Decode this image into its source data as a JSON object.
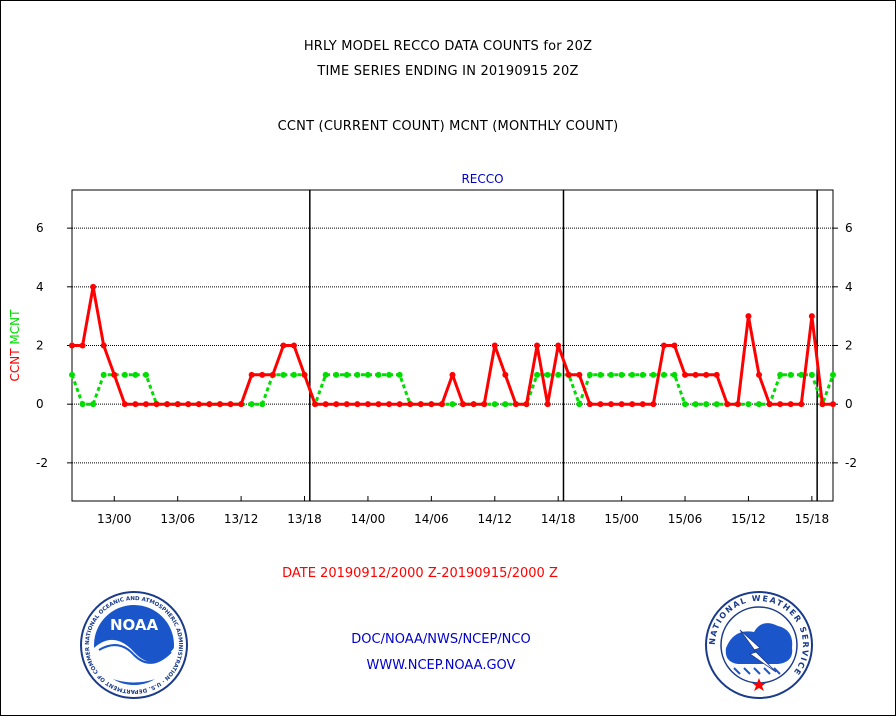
{
  "header": {
    "line1": "HRLY MODEL RECCO DATA COUNTS for 20Z",
    "line2": "TIME SERIES ENDING IN 20190915 20Z",
    "line3": "CCNT (CURRENT COUNT) MCNT (MONTHLY COUNT)"
  },
  "footer": {
    "date_range": "DATE 20190912/2000 Z-20190915/2000 Z",
    "org": "DOC/NOAA/NWS/NCEP/NCO",
    "url": "WWW.NCEP.NOAA.GOV"
  },
  "logos": {
    "left": {
      "text": "NOAA",
      "ring_text": "NATIONAL OCEANIC AND ATMOSPHERIC ADMINISTRATION · U.S. DEPARTMENT OF COMMERCE"
    },
    "right": {
      "ring_text": "NATIONAL WEATHER SERVICE"
    }
  },
  "colors": {
    "ccnt": "#ff0000",
    "mcnt": "#00dd00",
    "panel_title": "#0000cc"
  },
  "chart_data": {
    "type": "line",
    "title": "RECCO",
    "ylabel_parts": [
      "CCNT",
      "MCNT"
    ],
    "ylim": [
      -3.3,
      7.3
    ],
    "yticks": [
      -2,
      0,
      2,
      4,
      6
    ],
    "ytick_labels": [
      "-2",
      "0",
      "2",
      "4",
      "6"
    ],
    "grid": true,
    "hour_range": [
      -4,
      68
    ],
    "x_ticks": [
      0,
      6,
      12,
      18,
      24,
      30,
      36,
      42,
      48,
      54,
      60,
      66
    ],
    "x_tick_labels": [
      "13/00",
      "13/06",
      "13/12",
      "13/18",
      "14/00",
      "14/06",
      "14/12",
      "14/18",
      "15/00",
      "15/06",
      "15/12",
      "15/18"
    ],
    "day_separators": [
      18.5,
      42.5,
      66.5
    ],
    "x_start_hour": -4,
    "series": [
      {
        "name": "CCNT",
        "values": [
          2,
          2,
          4,
          2,
          1,
          0,
          0,
          0,
          0,
          0,
          0,
          0,
          0,
          0,
          0,
          0,
          0,
          1,
          1,
          1,
          2,
          2,
          1,
          0,
          0,
          0,
          0,
          0,
          0,
          0,
          0,
          0,
          0,
          0,
          0,
          0,
          1,
          0,
          0,
          0,
          2,
          1,
          0,
          0,
          2,
          0,
          2,
          1,
          1,
          0,
          0,
          0,
          0,
          0,
          0,
          0,
          2,
          2,
          1,
          1,
          1,
          1,
          0,
          0,
          3,
          1,
          0,
          0,
          0,
          0,
          3,
          0,
          0
        ]
      },
      {
        "name": "MCNT",
        "values": [
          1,
          0,
          0,
          1,
          1,
          1,
          1,
          1,
          0,
          0,
          0,
          0,
          0,
          0,
          0,
          0,
          0,
          0,
          0,
          1,
          1,
          1,
          1,
          0,
          1,
          1,
          1,
          1,
          1,
          1,
          1,
          1,
          0,
          0,
          0,
          0,
          0,
          0,
          0,
          0,
          0,
          0,
          0,
          0,
          1,
          1,
          1,
          1,
          0,
          1,
          1,
          1,
          1,
          1,
          1,
          1,
          1,
          1,
          0,
          0,
          0,
          0,
          0,
          0,
          0,
          0,
          0,
          1,
          1,
          1,
          1,
          0,
          1
        ]
      }
    ]
  }
}
